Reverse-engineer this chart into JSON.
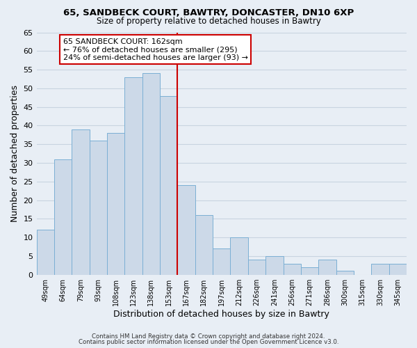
{
  "title1": "65, SANDBECK COURT, BAWTRY, DONCASTER, DN10 6XP",
  "title2": "Size of property relative to detached houses in Bawtry",
  "xlabel": "Distribution of detached houses by size in Bawtry",
  "ylabel": "Number of detached properties",
  "bar_color": "#ccd9e8",
  "bar_edge_color": "#7bafd4",
  "categories": [
    "49sqm",
    "64sqm",
    "79sqm",
    "93sqm",
    "108sqm",
    "123sqm",
    "138sqm",
    "153sqm",
    "167sqm",
    "182sqm",
    "197sqm",
    "212sqm",
    "226sqm",
    "241sqm",
    "256sqm",
    "271sqm",
    "286sqm",
    "300sqm",
    "315sqm",
    "330sqm",
    "345sqm"
  ],
  "values": [
    12,
    31,
    39,
    36,
    38,
    53,
    54,
    48,
    24,
    16,
    7,
    10,
    4,
    5,
    3,
    2,
    4,
    1,
    0,
    3,
    3
  ],
  "vline_index": 7.5,
  "vline_color": "#cc0000",
  "ylim": [
    0,
    65
  ],
  "yticks": [
    0,
    5,
    10,
    15,
    20,
    25,
    30,
    35,
    40,
    45,
    50,
    55,
    60,
    65
  ],
  "annotation_title": "65 SANDBECK COURT: 162sqm",
  "annotation_line1": "← 76% of detached houses are smaller (295)",
  "annotation_line2": "24% of semi-detached houses are larger (93) →",
  "annotation_box_color": "#ffffff",
  "annotation_box_edge": "#cc0000",
  "footer1": "Contains HM Land Registry data © Crown copyright and database right 2024.",
  "footer2": "Contains public sector information licensed under the Open Government Licence v3.0.",
  "background_color": "#e8eef5",
  "grid_color": "#c8d4e0"
}
